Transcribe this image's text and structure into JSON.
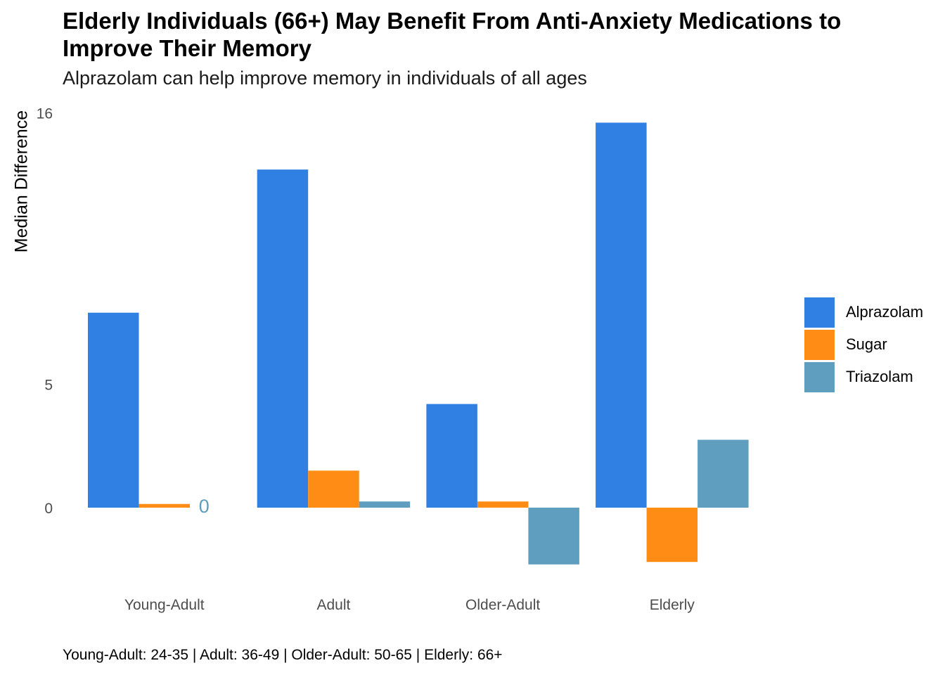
{
  "chart_data": {
    "type": "bar",
    "title": "Elderly Individuals (66+) May Benefit From Anti-Anxiety Medications to Improve Their Memory",
    "subtitle": "Alprazolam can help improve memory in individuals of all ages",
    "xlabel": "",
    "ylabel": "Median Difference",
    "categories": [
      "Young-Adult",
      "Adult",
      "Older-Adult",
      "Elderly"
    ],
    "series": [
      {
        "name": "Alprazolam",
        "color": "#3080e4",
        "values": [
          7.9,
          13.7,
          4.2,
          15.6
        ]
      },
      {
        "name": "Sugar",
        "color": "#ff8c15",
        "values": [
          0.15,
          1.5,
          0.25,
          -2.2
        ]
      },
      {
        "name": "Triazolam",
        "color": "#5f9ebf",
        "values": [
          0,
          0.25,
          -2.3,
          2.75
        ]
      }
    ],
    "yticks": [
      0,
      5,
      16
    ],
    "ylim": [
      -2.6,
      16
    ],
    "annotations": [
      {
        "category": "Young-Adult",
        "series": "Triazolam",
        "text": "0"
      }
    ],
    "caption": "Young-Adult: 24-35 | Adult: 36-49 | Older-Adult: 50-65 | Elderly: 66+",
    "legend_position": "right",
    "grid": false
  }
}
